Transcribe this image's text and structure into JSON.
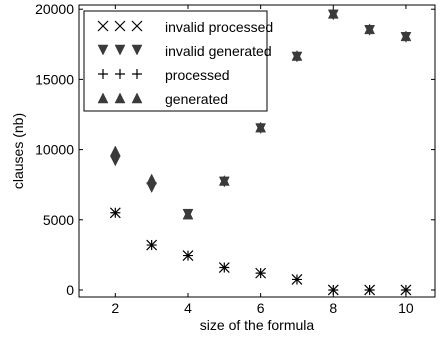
{
  "chart_data": {
    "type": "scatter",
    "xlabel": "size of the formula",
    "ylabel": "clauses (nb)",
    "xlim": [
      1,
      10.8
    ],
    "ylim": [
      -500,
      20300
    ],
    "xticks": [
      2,
      4,
      6,
      8,
      10
    ],
    "xtick_labels": [
      "2",
      "4",
      "6",
      "8",
      "10"
    ],
    "yticks": [
      0,
      5000,
      10000,
      15000,
      20000
    ],
    "ytick_labels": [
      "0",
      "5000",
      "10000",
      "15000",
      "20000"
    ],
    "grid": false,
    "legend_position": "top-left",
    "series": [
      {
        "name": "invalid processed",
        "marker": "x",
        "color": "#000000",
        "x": [
          2,
          3,
          4,
          5,
          6,
          7,
          8,
          9,
          10
        ],
        "y": [
          5500,
          3200,
          2450,
          1600,
          1200,
          750,
          0,
          0,
          0
        ]
      },
      {
        "name": "invalid generated",
        "marker": "triangle-down",
        "color": "#3a3a3a",
        "x": [
          2,
          3,
          4,
          5,
          6,
          7,
          8,
          9,
          10
        ],
        "y": [
          9200,
          7300,
          5400,
          7700,
          11500,
          16600,
          19600,
          18500,
          18000
        ]
      },
      {
        "name": "processed",
        "marker": "plus",
        "color": "#000000",
        "x": [
          2,
          3,
          4,
          5,
          6,
          7,
          8,
          9,
          10
        ],
        "y": [
          5500,
          3200,
          2450,
          1600,
          1200,
          750,
          0,
          0,
          0
        ]
      },
      {
        "name": "generated",
        "marker": "triangle-up",
        "color": "#3a3a3a",
        "x": [
          2,
          3,
          4,
          5,
          6,
          7,
          8,
          9,
          10
        ],
        "y": [
          9900,
          7900,
          5400,
          7800,
          11600,
          16700,
          19700,
          18600,
          18100
        ]
      }
    ]
  }
}
